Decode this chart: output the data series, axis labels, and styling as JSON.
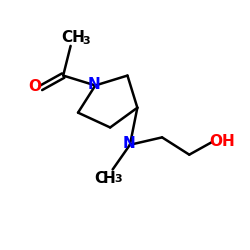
{
  "background_color": "#ffffff",
  "atom_colors": {
    "C": "#000000",
    "N": "#0000ff",
    "O": "#ff0000",
    "H": "#000000"
  },
  "bond_color": "#000000",
  "bond_width": 1.8,
  "font_size_label": 11,
  "font_size_subscript": 8,
  "figsize": [
    2.5,
    2.5
  ],
  "dpi": 100
}
